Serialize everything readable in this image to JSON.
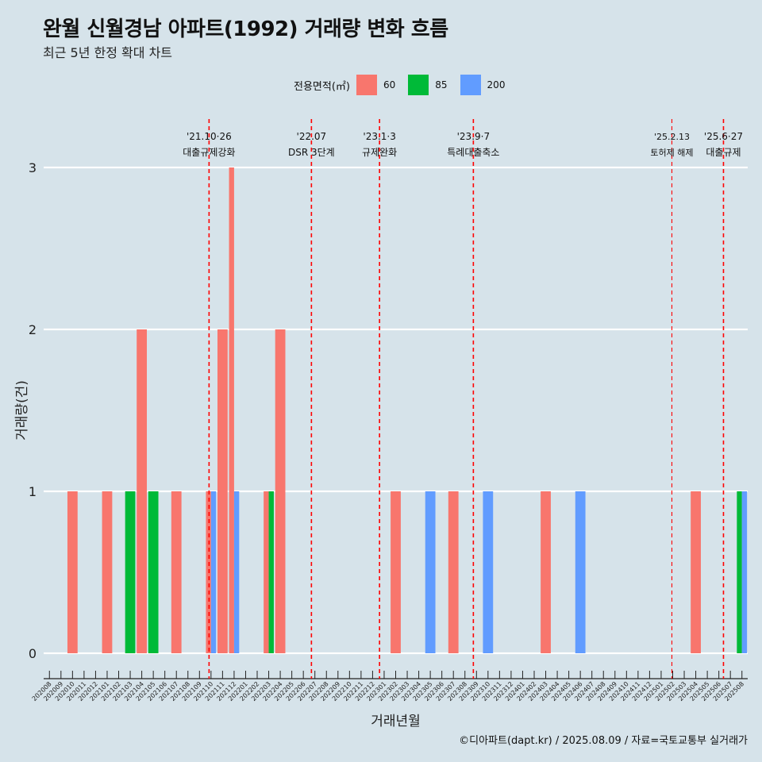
{
  "header": {
    "title": "완월 신월경남 아파트(1992) 거래량 변화 흐름",
    "subtitle": "최근 5년 한정 확대 차트"
  },
  "legend": {
    "title": "전용면적(㎡)",
    "items": [
      {
        "label": "60",
        "color": "#F8766D"
      },
      {
        "label": "85",
        "color": "#00BA38"
      },
      {
        "label": "200",
        "color": "#619CFF"
      }
    ]
  },
  "footer": {
    "credit": "©디아파트(dapt.kr) / 2025.08.09 / 자료=국토교통부 실거래가"
  },
  "chart_data": {
    "type": "bar",
    "xlabel": "거래년월",
    "ylabel": "거래량(건)",
    "ylim": [
      0,
      3
    ],
    "yticks": [
      0,
      1,
      2,
      3
    ],
    "grid": "horizontal",
    "legend_position": "top",
    "categories": [
      "202008",
      "202009",
      "202010",
      "202011",
      "202012",
      "202101",
      "202102",
      "202103",
      "202104",
      "202105",
      "202106",
      "202107",
      "202108",
      "202109",
      "202110",
      "202111",
      "202112",
      "202201",
      "202202",
      "202203",
      "202204",
      "202205",
      "202206",
      "202207",
      "202208",
      "202209",
      "202210",
      "202211",
      "202212",
      "202301",
      "202302",
      "202303",
      "202304",
      "202305",
      "202306",
      "202307",
      "202308",
      "202309",
      "202310",
      "202311",
      "202312",
      "202401",
      "202402",
      "202403",
      "202404",
      "202405",
      "202406",
      "202407",
      "202408",
      "202409",
      "202410",
      "202411",
      "202412",
      "202501",
      "202502",
      "202503",
      "202504",
      "202505",
      "202506",
      "202507",
      "202508"
    ],
    "series": [
      {
        "name": "60",
        "color": "#F8766D",
        "values": [
          0,
          0,
          1,
          0,
          0,
          1,
          0,
          0,
          2,
          0,
          0,
          1,
          0,
          0,
          1,
          2,
          3,
          0,
          0,
          1,
          2,
          0,
          0,
          0,
          0,
          0,
          0,
          0,
          0,
          0,
          1,
          0,
          0,
          0,
          0,
          1,
          0,
          0,
          0,
          0,
          0,
          0,
          0,
          1,
          0,
          0,
          0,
          0,
          0,
          0,
          0,
          0,
          0,
          0,
          0,
          0,
          1,
          0,
          0,
          0,
          0
        ]
      },
      {
        "name": "85",
        "color": "#00BA38",
        "values": [
          0,
          0,
          0,
          0,
          0,
          0,
          0,
          1,
          0,
          1,
          0,
          0,
          0,
          0,
          0,
          0,
          0,
          0,
          0,
          1,
          0,
          0,
          0,
          0,
          0,
          0,
          0,
          0,
          0,
          0,
          0,
          0,
          0,
          0,
          0,
          0,
          0,
          0,
          0,
          0,
          0,
          0,
          0,
          0,
          0,
          0,
          0,
          0,
          0,
          0,
          0,
          0,
          0,
          0,
          0,
          0,
          0,
          0,
          0,
          0,
          1
        ]
      },
      {
        "name": "200",
        "color": "#619CFF",
        "values": [
          0,
          0,
          0,
          0,
          0,
          0,
          0,
          0,
          0,
          0,
          0,
          0,
          0,
          0,
          1,
          0,
          1,
          0,
          0,
          0,
          0,
          0,
          0,
          0,
          0,
          0,
          0,
          0,
          0,
          0,
          0,
          0,
          0,
          1,
          0,
          0,
          0,
          0,
          1,
          0,
          0,
          0,
          0,
          0,
          0,
          0,
          1,
          0,
          0,
          0,
          0,
          0,
          0,
          0,
          0,
          0,
          0,
          0,
          0,
          0,
          1
        ]
      }
    ],
    "annotations": [
      {
        "at": "202110",
        "offset": 0.33,
        "date": "'21.10·26",
        "label": "대출규제강화",
        "small": false
      },
      {
        "at": "202207",
        "offset": 0.2,
        "date": "'22.07",
        "label": "DSR 3단계",
        "small": false
      },
      {
        "at": "202301",
        "offset": 0.1,
        "date": "'23.1·3",
        "label": "규제완화",
        "small": false
      },
      {
        "at": "202309",
        "offset": 0.23,
        "date": "'23.9·7",
        "label": "특례대출축소",
        "small": false
      },
      {
        "at": "202502",
        "offset": 0.43,
        "date": "'25.2.13",
        "label": "토허제 해제",
        "small": true
      },
      {
        "at": "202506",
        "offset": 0.9,
        "date": "'25.6·27",
        "label": "대출규제",
        "small": false
      }
    ]
  }
}
